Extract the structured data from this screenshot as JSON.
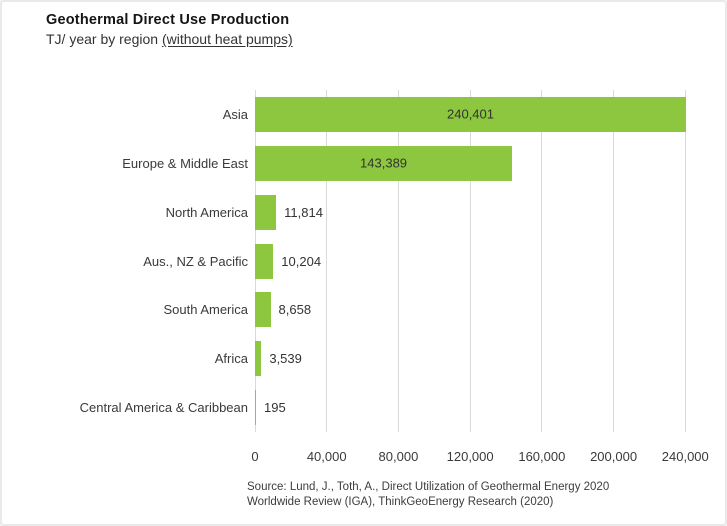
{
  "header": {
    "title": "Geothermal Direct Use Production",
    "subtitle_prefix": "TJ/ year by region ",
    "subtitle_underlined": "(without heat pumps)"
  },
  "chart_data": {
    "type": "bar",
    "orientation": "horizontal",
    "title": "Geothermal Direct Use Production",
    "subtitle": "TJ/ year by region (without heat pumps)",
    "xlabel": "",
    "ylabel": "",
    "categories": [
      "Asia",
      "Europe & Middle East",
      "North America",
      "Aus., NZ & Pacific",
      "South America",
      "Africa",
      "Central America & Caribbean"
    ],
    "values": [
      240401,
      143389,
      11814,
      10204,
      8658,
      3539,
      195
    ],
    "value_labels": [
      "240,401",
      "143,389",
      "11,814",
      "10,204",
      "8,658",
      "3,539",
      "195"
    ],
    "x_ticks": [
      0,
      40000,
      80000,
      120000,
      160000,
      200000,
      240000
    ],
    "x_tick_labels": [
      "0",
      "40,000",
      "80,000",
      "120,000",
      "160,000",
      "200,000",
      "240,000"
    ],
    "xlim": [
      0,
      240401
    ],
    "grid": "vertical",
    "legend": "none",
    "bar_color": "#8dc63f",
    "inside_label_threshold_pct": 25
  },
  "source": {
    "line1": "Source: Lund, J., Toth, A., Direct Utilization of Geothermal Energy 2020",
    "line2": "Worldwide Review (IGA), ThinkGeoEnergy Research (2020)"
  },
  "colors": {
    "bar": "#8dc63f",
    "grid": "#d9d9d9",
    "text": "#3a3a3a",
    "title": "#141414",
    "frame_border": "#e9e9e9",
    "background": "#ffffff"
  }
}
